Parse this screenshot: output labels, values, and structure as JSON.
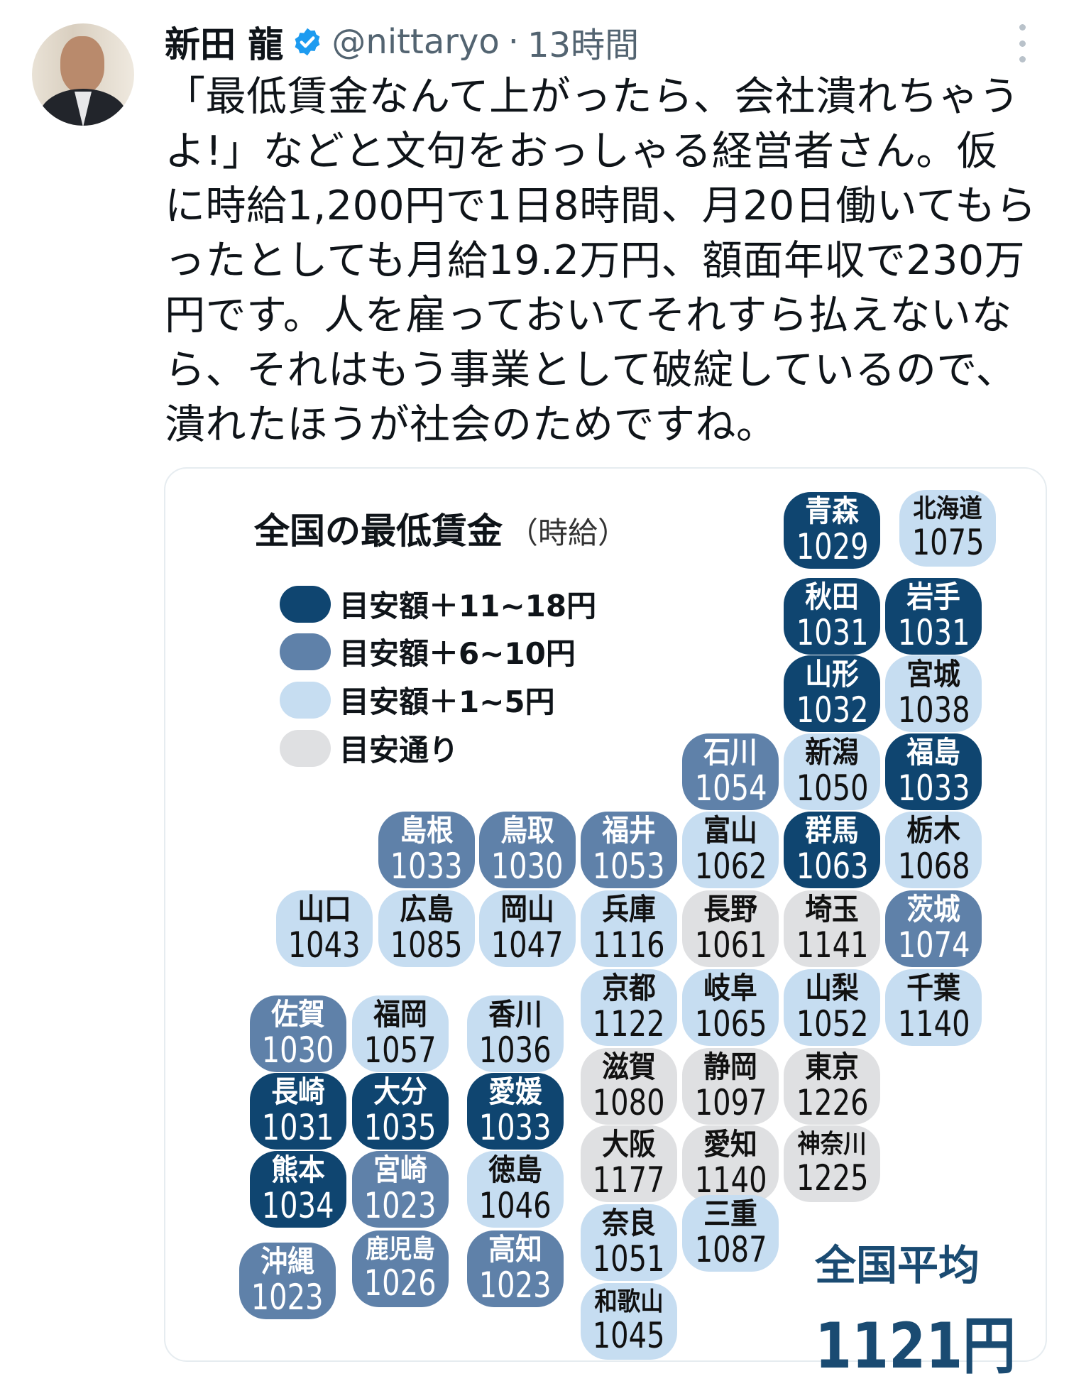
{
  "tweet": {
    "author_name": "新田 龍",
    "verified": true,
    "handle": "@nittaryo",
    "separator": "·",
    "time": "13時間",
    "text_lines": [
      "「最低賃金なんて上がったら、会社潰れちゃう",
      "よ!」などと文句をおっしゃる経営者さん。仮",
      "に時給1,200円で1日8時間、月20日働いてもら",
      "ったとしても月給19.2万円、額面年収で230万",
      "円です。人を雇っておいてそれすら払えないな",
      "ら、それはもう事業として破綻しているので、",
      "潰れたほうが社会のためですね。"
    ],
    "icons": {
      "verified": "verified-badge-icon",
      "more": "more-options-icon"
    }
  },
  "chart_data": {
    "type": "table",
    "title": "全国の最低賃金",
    "subtitle": "（時給）",
    "legend": [
      {
        "key": "d",
        "label": "目安額＋11~18円",
        "color": "#0f4570"
      },
      {
        "key": "m",
        "label": "目安額＋6~10円",
        "color": "#5f81a9"
      },
      {
        "key": "l",
        "label": "目安額＋1~5円",
        "color": "#c6ddf1"
      },
      {
        "key": "g",
        "label": "目安通り",
        "color": "#dfe0e2"
      }
    ],
    "prefectures": [
      {
        "name": "青森",
        "value": "1029",
        "cat": "d"
      },
      {
        "name": "北海道",
        "value": "1075",
        "cat": "l"
      },
      {
        "name": "秋田",
        "value": "1031",
        "cat": "d"
      },
      {
        "name": "岩手",
        "value": "1031",
        "cat": "d"
      },
      {
        "name": "山形",
        "value": "1032",
        "cat": "d"
      },
      {
        "name": "宮城",
        "value": "1038",
        "cat": "l"
      },
      {
        "name": "石川",
        "value": "1054",
        "cat": "m"
      },
      {
        "name": "新潟",
        "value": "1050",
        "cat": "l"
      },
      {
        "name": "福島",
        "value": "1033",
        "cat": "d"
      },
      {
        "name": "島根",
        "value": "1033",
        "cat": "m"
      },
      {
        "name": "鳥取",
        "value": "1030",
        "cat": "m"
      },
      {
        "name": "福井",
        "value": "1053",
        "cat": "m"
      },
      {
        "name": "富山",
        "value": "1062",
        "cat": "l"
      },
      {
        "name": "群馬",
        "value": "1063",
        "cat": "d"
      },
      {
        "name": "栃木",
        "value": "1068",
        "cat": "l"
      },
      {
        "name": "山口",
        "value": "1043",
        "cat": "l"
      },
      {
        "name": "広島",
        "value": "1085",
        "cat": "l"
      },
      {
        "name": "岡山",
        "value": "1047",
        "cat": "l"
      },
      {
        "name": "兵庫",
        "value": "1116",
        "cat": "l"
      },
      {
        "name": "長野",
        "value": "1061",
        "cat": "g"
      },
      {
        "name": "埼玉",
        "value": "1141",
        "cat": "g"
      },
      {
        "name": "茨城",
        "value": "1074",
        "cat": "m"
      },
      {
        "name": "京都",
        "value": "1122",
        "cat": "l"
      },
      {
        "name": "岐阜",
        "value": "1065",
        "cat": "l"
      },
      {
        "name": "山梨",
        "value": "1052",
        "cat": "l"
      },
      {
        "name": "千葉",
        "value": "1140",
        "cat": "l"
      },
      {
        "name": "佐賀",
        "value": "1030",
        "cat": "m"
      },
      {
        "name": "福岡",
        "value": "1057",
        "cat": "l"
      },
      {
        "name": "香川",
        "value": "1036",
        "cat": "l"
      },
      {
        "name": "滋賀",
        "value": "1080",
        "cat": "g"
      },
      {
        "name": "静岡",
        "value": "1097",
        "cat": "g"
      },
      {
        "name": "東京",
        "value": "1226",
        "cat": "g"
      },
      {
        "name": "長崎",
        "value": "1031",
        "cat": "d"
      },
      {
        "name": "大分",
        "value": "1035",
        "cat": "d"
      },
      {
        "name": "愛媛",
        "value": "1033",
        "cat": "d"
      },
      {
        "name": "大阪",
        "value": "1177",
        "cat": "g"
      },
      {
        "name": "愛知",
        "value": "1140",
        "cat": "g"
      },
      {
        "name": "神奈川",
        "value": "1225",
        "cat": "g"
      },
      {
        "name": "熊本",
        "value": "1034",
        "cat": "d"
      },
      {
        "name": "宮崎",
        "value": "1023",
        "cat": "m"
      },
      {
        "name": "徳島",
        "value": "1046",
        "cat": "l"
      },
      {
        "name": "奈良",
        "value": "1051",
        "cat": "l"
      },
      {
        "name": "三重",
        "value": "1087",
        "cat": "l"
      },
      {
        "name": "鹿児島",
        "value": "1026",
        "cat": "m"
      },
      {
        "name": "高知",
        "value": "1023",
        "cat": "m"
      },
      {
        "name": "沖縄",
        "value": "1023",
        "cat": "m"
      },
      {
        "name": "和歌山",
        "value": "1045",
        "cat": "l"
      }
    ],
    "national_average_label": "全国平均",
    "national_average_value": "1121円"
  }
}
